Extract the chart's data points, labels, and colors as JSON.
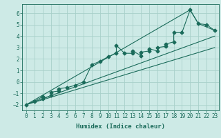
{
  "xlabel": "Humidex (Indice chaleur)",
  "xlim": [
    -0.5,
    23.5
  ],
  "ylim": [
    -2.5,
    6.8
  ],
  "xticks": [
    0,
    1,
    2,
    3,
    4,
    5,
    6,
    7,
    8,
    9,
    10,
    11,
    12,
    13,
    14,
    15,
    16,
    17,
    18,
    19,
    20,
    21,
    22,
    23
  ],
  "yticks": [
    -2,
    -1,
    0,
    1,
    2,
    3,
    4,
    5,
    6
  ],
  "bg_color": "#cdeae6",
  "line_color": "#1a6b5a",
  "grid_color": "#a8d0ca",
  "data_x": [
    0,
    1,
    2,
    2,
    3,
    3,
    4,
    4,
    5,
    6,
    7,
    8,
    9,
    10,
    11,
    11,
    12,
    13,
    13,
    14,
    14,
    15,
    15,
    16,
    16,
    17,
    17,
    18,
    18,
    19,
    20,
    21,
    22,
    23
  ],
  "data_y": [
    -2.0,
    -1.7,
    -1.3,
    -1.5,
    -1.2,
    -0.9,
    -0.8,
    -0.6,
    -0.5,
    -0.3,
    0.0,
    1.5,
    1.8,
    2.2,
    2.5,
    3.2,
    2.5,
    2.5,
    2.7,
    2.3,
    2.6,
    2.7,
    2.9,
    2.7,
    3.0,
    3.1,
    3.3,
    3.5,
    4.3,
    4.3,
    6.3,
    5.1,
    5.0,
    4.5
  ],
  "upper_line_x": [
    0,
    20,
    21,
    23
  ],
  "upper_line_y": [
    -2.0,
    6.3,
    5.1,
    4.5
  ],
  "lower_line_x": [
    0,
    23
  ],
  "lower_line_y": [
    -2.0,
    4.0
  ],
  "mid_line_x": [
    0,
    23
  ],
  "mid_line_y": [
    -2.0,
    3.0
  ],
  "figsize": [
    3.2,
    2.0
  ],
  "dpi": 100
}
